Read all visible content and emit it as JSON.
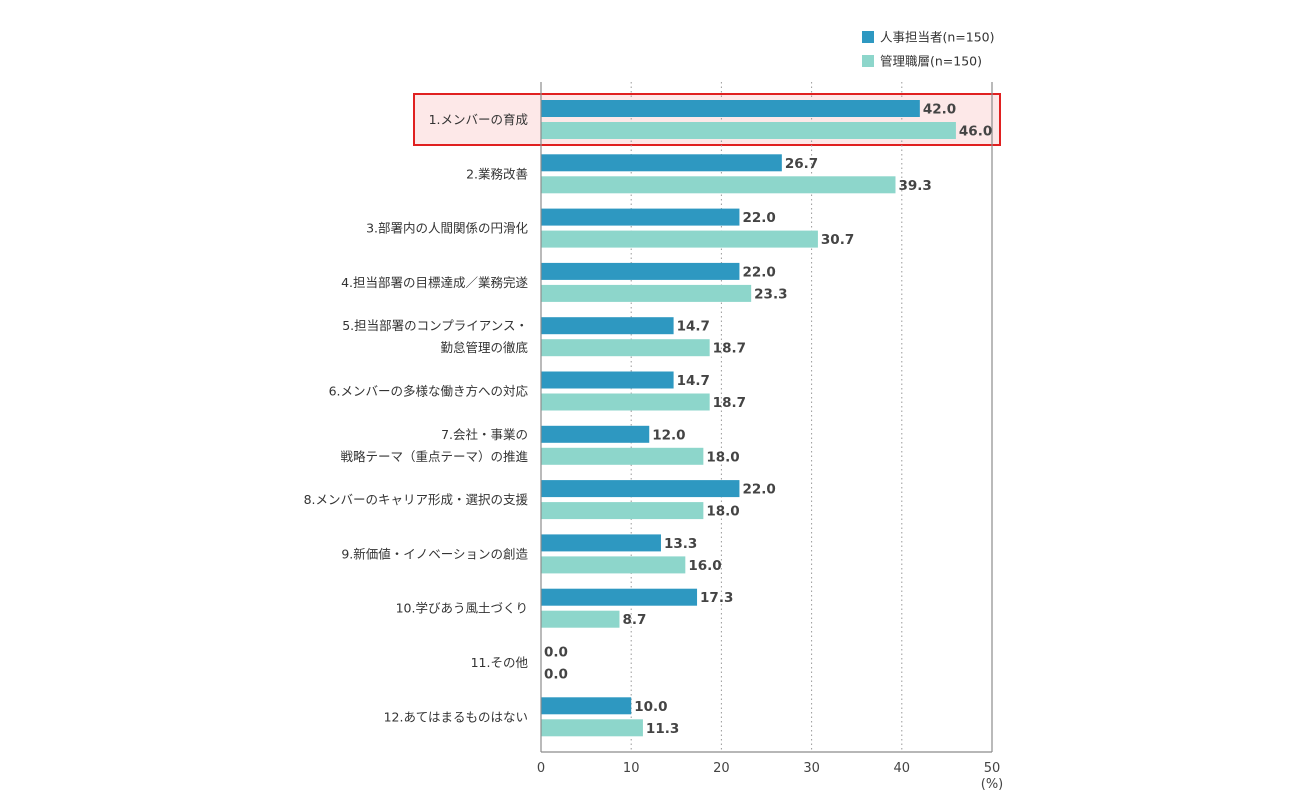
{
  "chart_data": {
    "type": "bar",
    "orientation": "horizontal",
    "categories": [
      [
        "1.メンバーの育成"
      ],
      [
        "2.業務改善"
      ],
      [
        "3.部署内の人間関係の円滑化"
      ],
      [
        "4.担当部署の目標達成／業務完遂"
      ],
      [
        "5.担当部署のコンプライアンス・",
        "勤怠管理の徹底"
      ],
      [
        "6.メンバーの多様な働き方への対応"
      ],
      [
        "7.会社・事業の",
        "戦略テーマ（重点テーマ）の推進"
      ],
      [
        "8.メンバーのキャリア形成・選択の支援"
      ],
      [
        "9.新価値・イノベーションの創造"
      ],
      [
        "10.学びあう風土づくり"
      ],
      [
        "11.その他"
      ],
      [
        "12.あてはまるものはない"
      ]
    ],
    "series": [
      {
        "name": "人事担当者(n=150)",
        "color": "#2e98c1",
        "values": [
          42.0,
          26.7,
          22.0,
          22.0,
          14.7,
          14.7,
          12.0,
          22.0,
          13.3,
          17.3,
          0.0,
          10.0
        ],
        "labels": [
          "42.0",
          "26.7",
          "22.0",
          "22.0",
          "14.7",
          "14.7",
          "12.0",
          "22.0",
          "13.3",
          "17.3",
          "0.0",
          "10.0"
        ]
      },
      {
        "name": "管理職層(n=150)",
        "color": "#8dd6cb",
        "values": [
          46.0,
          39.3,
          30.7,
          23.3,
          18.7,
          18.7,
          18.0,
          18.0,
          16.0,
          8.7,
          0.0,
          11.3
        ],
        "labels": [
          "46.0",
          "39.3",
          "30.7",
          "23.3",
          "18.7",
          "18.7",
          "18.0",
          "18.0",
          "16.0",
          "8.7",
          "0.0",
          "11.3"
        ]
      }
    ],
    "xlim": [
      0,
      50
    ],
    "xticks": [
      "0",
      "10",
      "20",
      "30",
      "40",
      "50"
    ],
    "xunit": "(%)",
    "grid": "vertical dotted",
    "legend": "top-right",
    "highlighted_category_index": 0,
    "highlight_color": "#e02020",
    "highlight_fill": "#fde8e8"
  }
}
